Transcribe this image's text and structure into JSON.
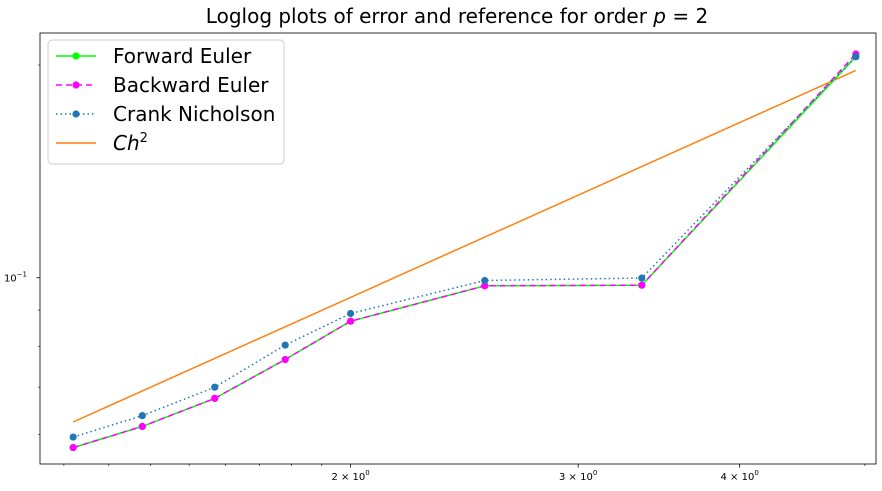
{
  "chart_data": {
    "type": "line",
    "title_prefix": "Loglog plots of error and reference for order ",
    "title_var": "p",
    "title_suffix": " = 2",
    "xlabel": "",
    "ylabel": "",
    "xscale": "log",
    "yscale": "log",
    "xlim": [
      1.15,
      5.1
    ],
    "ylim": [
      0.0545,
      0.222
    ],
    "grid": false,
    "legend_position": "top-left",
    "x_ticks": [
      {
        "value": 2,
        "label": "2 × 10",
        "exp": "0"
      },
      {
        "value": 3,
        "label": "3 × 10",
        "exp": "0"
      },
      {
        "value": 4,
        "label": "4 × 10",
        "exp": "0"
      }
    ],
    "y_ticks": [
      {
        "value": 0.1,
        "label": "10",
        "exp": "−1"
      }
    ],
    "series": [
      {
        "name": "Forward Euler",
        "color": "#00ff00",
        "line_style": "solid",
        "marker": "circle",
        "x": [
          1.22,
          1.38,
          1.57,
          1.78,
          2.0,
          2.54,
          3.36,
          4.92
        ],
        "y": [
          0.0575,
          0.0616,
          0.0675,
          0.0766,
          0.0868,
          0.0974,
          0.0976,
          0.2055
        ]
      },
      {
        "name": "Backward Euler",
        "color": "#ff00ff",
        "line_style": "dashed",
        "marker": "circle",
        "x": [
          1.22,
          1.38,
          1.57,
          1.78,
          2.0,
          2.54,
          3.36,
          4.92
        ],
        "y": [
          0.0575,
          0.0616,
          0.0675,
          0.0766,
          0.0868,
          0.0974,
          0.0976,
          0.2073
        ]
      },
      {
        "name": "Crank Nicholson",
        "color": "#1f77b4",
        "line_style": "dotted",
        "marker": "circle",
        "x": [
          1.22,
          1.38,
          1.57,
          1.78,
          2.0,
          2.54,
          3.36,
          4.92
        ],
        "y": [
          0.0595,
          0.0638,
          0.07,
          0.0803,
          0.089,
          0.0991,
          0.0999,
          0.2055
        ]
      },
      {
        "name": "Ch",
        "name_sup": "2",
        "color": "#ff7f0e",
        "line_style": "solid",
        "marker": "none",
        "x": [
          1.22,
          4.92
        ],
        "y": [
          0.0625,
          0.1965
        ]
      }
    ]
  }
}
